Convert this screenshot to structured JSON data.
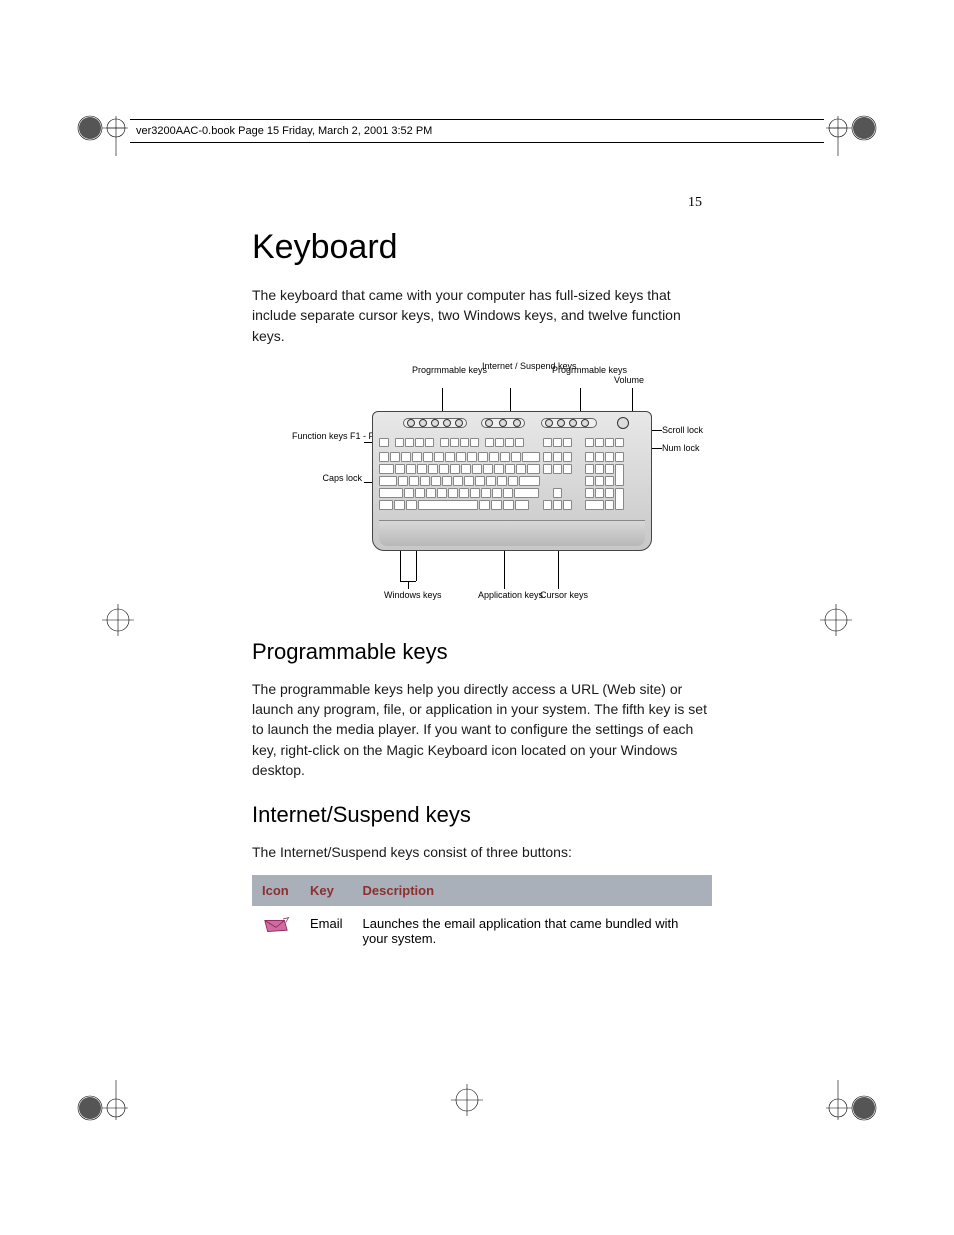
{
  "meta": {
    "header_text": "ver3200AAC-0.book  Page 15  Friday, March 2, 2001  3:52 PM",
    "page_number": "15"
  },
  "h1": "Keyboard",
  "intro": "The keyboard that came with your computer has full-sized keys that include separate cursor keys, two Windows keys, and twelve function keys.",
  "diagram": {
    "labels": {
      "prog1": "Progrmmable keys",
      "internet": "Internet / Suspend keys",
      "prog2": "Progrmmable keys",
      "volume": "Volume",
      "function": "Function keys F1 - F12",
      "caps": "Caps lock",
      "scroll": "Scroll lock",
      "num": "Num lock",
      "windows": "Windows keys",
      "application": "Application keys",
      "cursor": "Cursor keys"
    },
    "colors": {
      "kb_top": "#e8e8e8",
      "kb_bottom": "#c8c8c8",
      "key_fill": "#ffffff",
      "border": "#444444"
    }
  },
  "h2_prog": "Programmable keys",
  "prog_text": "The programmable keys help you directly access a URL (Web site) or launch any program, file, or application in your system. The fifth key is set to launch the media player. If you want to configure the settings of each key, right-click on the Magic Keyboard icon located on your Windows desktop.",
  "h2_internet": "Internet/Suspend keys",
  "internet_text": "The Internet/Suspend keys consist of three buttons:",
  "table": {
    "header_bg": "#aab0ba",
    "header_fg": "#8a3030",
    "columns": [
      "Icon",
      "Key",
      "Description"
    ],
    "rows": [
      {
        "icon": "email",
        "key": "Email",
        "desc": "Launches the email application that came bundled with your system."
      }
    ],
    "icon_colors": {
      "email_fill": "#d16aa0",
      "email_stroke": "#8a2856"
    }
  }
}
